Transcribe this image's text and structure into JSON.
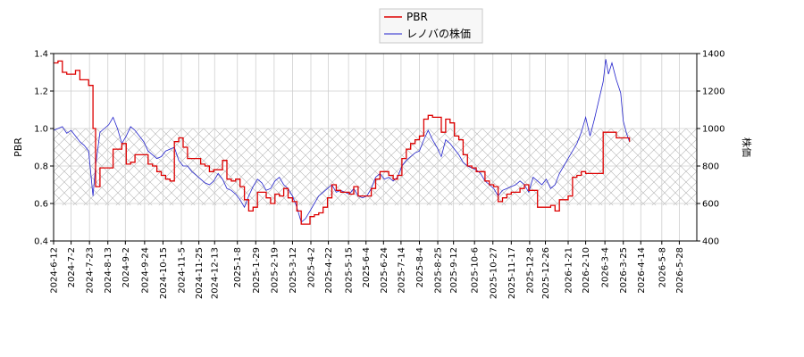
{
  "chart_data": {
    "type": "line",
    "legend": {
      "position": "top-center",
      "entries": [
        {
          "name": "PBR",
          "color": "#dd0000"
        },
        {
          "name": "レノバの株価",
          "color": "#2222cc"
        }
      ]
    },
    "ylabel_left": "PBR",
    "ylabel_right": "株価",
    "ylim_left": [
      0.4,
      1.4
    ],
    "ylim_right": [
      400,
      1400
    ],
    "yticks_left": [
      "0.4",
      "0.6",
      "0.8",
      "1.0",
      "1.2",
      "1.4"
    ],
    "yticks_right": [
      "400",
      "600",
      "800",
      "1000",
      "1200",
      "1400"
    ],
    "grid": true,
    "hatched_band": [
      0.59,
      1.0
    ],
    "x_range": [
      "2024-06-12",
      "2026-06-17"
    ],
    "x_ticks": [
      "2024-6-12",
      "2024-7-2",
      "2024-7-23",
      "2024-8-13",
      "2024-9-2",
      "2024-9-24",
      "2024-10-15",
      "2024-11-5",
      "2024-11-25",
      "2024-12-13",
      "2025-1-8",
      "2025-1-29",
      "2025-2-19",
      "2025-3-12",
      "2025-4-2",
      "2025-4-22",
      "2025-5-15",
      "2025-6-4",
      "2025-6-24",
      "2025-7-14",
      "2025-8-4",
      "2025-8-25",
      "2025-9-12",
      "2025-10-6",
      "2025-10-27",
      "2025-11-17",
      "2025-12-8",
      "2025-12-26",
      "2026-1-21",
      "2026-2-10",
      "2026-3-4",
      "2026-3-25",
      "2026-4-14",
      "2026-5-8",
      "2026-5-28"
    ],
    "series": [
      {
        "name": "PBR",
        "axis": "left",
        "color": "#dd0000",
        "points": [
          [
            "2024-06-12",
            1.35
          ],
          [
            "2024-06-17",
            1.36
          ],
          [
            "2024-06-22",
            1.3
          ],
          [
            "2024-06-27",
            1.29
          ],
          [
            "2024-07-02",
            1.29
          ],
          [
            "2024-07-07",
            1.31
          ],
          [
            "2024-07-12",
            1.26
          ],
          [
            "2024-07-17",
            1.26
          ],
          [
            "2024-07-22",
            1.23
          ],
          [
            "2024-07-27",
            1.0
          ],
          [
            "2024-07-30",
            0.69
          ],
          [
            "2024-08-04",
            0.79
          ],
          [
            "2024-08-09",
            0.79
          ],
          [
            "2024-08-14",
            0.79
          ],
          [
            "2024-08-19",
            0.89
          ],
          [
            "2024-08-24",
            0.89
          ],
          [
            "2024-08-29",
            0.92
          ],
          [
            "2024-09-03",
            0.81
          ],
          [
            "2024-09-08",
            0.82
          ],
          [
            "2024-09-13",
            0.86
          ],
          [
            "2024-09-18",
            0.86
          ],
          [
            "2024-09-23",
            0.86
          ],
          [
            "2024-09-28",
            0.81
          ],
          [
            "2024-10-03",
            0.8
          ],
          [
            "2024-10-08",
            0.77
          ],
          [
            "2024-10-13",
            0.75
          ],
          [
            "2024-10-18",
            0.73
          ],
          [
            "2024-10-23",
            0.72
          ],
          [
            "2024-10-28",
            0.93
          ],
          [
            "2024-11-02",
            0.95
          ],
          [
            "2024-11-07",
            0.9
          ],
          [
            "2024-11-12",
            0.84
          ],
          [
            "2024-11-17",
            0.84
          ],
          [
            "2024-11-22",
            0.84
          ],
          [
            "2024-11-27",
            0.81
          ],
          [
            "2024-12-02",
            0.8
          ],
          [
            "2024-12-07",
            0.77
          ],
          [
            "2024-12-12",
            0.78
          ],
          [
            "2024-12-17",
            0.78
          ],
          [
            "2024-12-22",
            0.83
          ],
          [
            "2024-12-27",
            0.73
          ],
          [
            "2025-01-01",
            0.72
          ],
          [
            "2025-01-06",
            0.73
          ],
          [
            "2025-01-11",
            0.69
          ],
          [
            "2025-01-16",
            0.62
          ],
          [
            "2025-01-21",
            0.56
          ],
          [
            "2025-01-26",
            0.58
          ],
          [
            "2025-01-31",
            0.66
          ],
          [
            "2025-02-05",
            0.66
          ],
          [
            "2025-02-10",
            0.63
          ],
          [
            "2025-02-15",
            0.6
          ],
          [
            "2025-02-20",
            0.65
          ],
          [
            "2025-02-25",
            0.64
          ],
          [
            "2025-03-02",
            0.68
          ],
          [
            "2025-03-07",
            0.63
          ],
          [
            "2025-03-12",
            0.61
          ],
          [
            "2025-03-17",
            0.56
          ],
          [
            "2025-03-22",
            0.49
          ],
          [
            "2025-03-27",
            0.49
          ],
          [
            "2025-04-01",
            0.53
          ],
          [
            "2025-04-06",
            0.54
          ],
          [
            "2025-04-11",
            0.55
          ],
          [
            "2025-04-16",
            0.58
          ],
          [
            "2025-04-21",
            0.63
          ],
          [
            "2025-04-26",
            0.7
          ],
          [
            "2025-05-01",
            0.67
          ],
          [
            "2025-05-06",
            0.66
          ],
          [
            "2025-05-11",
            0.66
          ],
          [
            "2025-05-16",
            0.65
          ],
          [
            "2025-05-21",
            0.69
          ],
          [
            "2025-05-26",
            0.64
          ],
          [
            "2025-05-31",
            0.64
          ],
          [
            "2025-06-05",
            0.64
          ],
          [
            "2025-06-10",
            0.68
          ],
          [
            "2025-06-15",
            0.73
          ],
          [
            "2025-06-20",
            0.77
          ],
          [
            "2025-06-25",
            0.77
          ],
          [
            "2025-06-30",
            0.75
          ],
          [
            "2025-07-05",
            0.73
          ],
          [
            "2025-07-10",
            0.75
          ],
          [
            "2025-07-15",
            0.84
          ],
          [
            "2025-07-20",
            0.89
          ],
          [
            "2025-07-25",
            0.92
          ],
          [
            "2025-07-30",
            0.94
          ],
          [
            "2025-08-04",
            0.96
          ],
          [
            "2025-08-09",
            1.05
          ],
          [
            "2025-08-14",
            1.07
          ],
          [
            "2025-08-19",
            1.06
          ],
          [
            "2025-08-24",
            1.06
          ],
          [
            "2025-08-29",
            0.98
          ],
          [
            "2025-09-03",
            1.05
          ],
          [
            "2025-09-08",
            1.03
          ],
          [
            "2025-09-13",
            0.96
          ],
          [
            "2025-09-18",
            0.94
          ],
          [
            "2025-09-23",
            0.86
          ],
          [
            "2025-09-28",
            0.8
          ],
          [
            "2025-10-03",
            0.79
          ],
          [
            "2025-10-08",
            0.77
          ],
          [
            "2025-10-13",
            0.77
          ],
          [
            "2025-10-18",
            0.72
          ],
          [
            "2025-10-23",
            0.7
          ],
          [
            "2025-10-28",
            0.69
          ],
          [
            "2025-11-02",
            0.61
          ],
          [
            "2025-11-07",
            0.63
          ],
          [
            "2025-11-12",
            0.65
          ],
          [
            "2025-11-17",
            0.66
          ],
          [
            "2025-11-22",
            0.66
          ],
          [
            "2025-11-27",
            0.68
          ],
          [
            "2025-12-02",
            0.7
          ],
          [
            "2025-12-07",
            0.67
          ],
          [
            "2025-12-12",
            0.67
          ],
          [
            "2025-12-17",
            0.58
          ],
          [
            "2025-12-22",
            0.58
          ],
          [
            "2025-12-27",
            0.58
          ],
          [
            "2026-01-01",
            0.59
          ],
          [
            "2026-01-06",
            0.56
          ],
          [
            "2026-01-11",
            0.62
          ],
          [
            "2026-01-16",
            0.62
          ],
          [
            "2026-01-21",
            0.64
          ],
          [
            "2026-01-26",
            0.74
          ],
          [
            "2026-01-31",
            0.75
          ],
          [
            "2026-02-05",
            0.77
          ],
          [
            "2026-02-10",
            0.76
          ],
          [
            "2026-02-15",
            0.76
          ],
          [
            "2026-02-20",
            0.76
          ],
          [
            "2026-02-25",
            0.76
          ],
          [
            "2026-03-02",
            0.98
          ],
          [
            "2026-03-07",
            0.98
          ],
          [
            "2026-03-12",
            0.98
          ],
          [
            "2026-03-17",
            0.95
          ],
          [
            "2026-03-22",
            0.95
          ],
          [
            "2026-03-27",
            0.95
          ],
          [
            "2026-04-01",
            0.93
          ]
        ]
      },
      {
        "name": "レノバの株価",
        "axis": "right",
        "color": "#2222cc",
        "points": [
          [
            "2024-06-12",
            990
          ],
          [
            "2024-06-17",
            1000
          ],
          [
            "2024-06-22",
            1010
          ],
          [
            "2024-06-27",
            975
          ],
          [
            "2024-07-02",
            990
          ],
          [
            "2024-07-07",
            960
          ],
          [
            "2024-07-12",
            930
          ],
          [
            "2024-07-17",
            910
          ],
          [
            "2024-07-22",
            880
          ],
          [
            "2024-07-27",
            640
          ],
          [
            "2024-07-30",
            800
          ],
          [
            "2024-08-04",
            980
          ],
          [
            "2024-08-09",
            1000
          ],
          [
            "2024-08-14",
            1020
          ],
          [
            "2024-08-19",
            1060
          ],
          [
            "2024-08-24",
            1000
          ],
          [
            "2024-08-29",
            920
          ],
          [
            "2024-09-03",
            960
          ],
          [
            "2024-09-08",
            1010
          ],
          [
            "2024-09-13",
            990
          ],
          [
            "2024-09-18",
            960
          ],
          [
            "2024-09-23",
            930
          ],
          [
            "2024-09-28",
            880
          ],
          [
            "2024-10-03",
            860
          ],
          [
            "2024-10-08",
            840
          ],
          [
            "2024-10-13",
            850
          ],
          [
            "2024-10-18",
            880
          ],
          [
            "2024-10-23",
            890
          ],
          [
            "2024-10-28",
            900
          ],
          [
            "2024-11-02",
            830
          ],
          [
            "2024-11-07",
            800
          ],
          [
            "2024-11-12",
            800
          ],
          [
            "2024-11-17",
            770
          ],
          [
            "2024-11-22",
            750
          ],
          [
            "2024-11-27",
            730
          ],
          [
            "2024-12-02",
            710
          ],
          [
            "2024-12-07",
            700
          ],
          [
            "2024-12-12",
            720
          ],
          [
            "2024-12-17",
            760
          ],
          [
            "2024-12-22",
            730
          ],
          [
            "2024-12-27",
            680
          ],
          [
            "2025-01-01",
            670
          ],
          [
            "2025-01-06",
            650
          ],
          [
            "2025-01-11",
            620
          ],
          [
            "2025-01-16",
            580
          ],
          [
            "2025-01-21",
            640
          ],
          [
            "2025-01-26",
            690
          ],
          [
            "2025-01-31",
            730
          ],
          [
            "2025-02-05",
            710
          ],
          [
            "2025-02-10",
            670
          ],
          [
            "2025-02-15",
            680
          ],
          [
            "2025-02-20",
            720
          ],
          [
            "2025-02-25",
            740
          ],
          [
            "2025-03-02",
            700
          ],
          [
            "2025-03-07",
            680
          ],
          [
            "2025-03-12",
            640
          ],
          [
            "2025-03-17",
            580
          ],
          [
            "2025-03-22",
            500
          ],
          [
            "2025-03-27",
            520
          ],
          [
            "2025-04-01",
            560
          ],
          [
            "2025-04-06",
            600
          ],
          [
            "2025-04-11",
            640
          ],
          [
            "2025-04-16",
            660
          ],
          [
            "2025-04-21",
            680
          ],
          [
            "2025-04-26",
            700
          ],
          [
            "2025-05-01",
            660
          ],
          [
            "2025-05-06",
            670
          ],
          [
            "2025-05-11",
            660
          ],
          [
            "2025-05-16",
            650
          ],
          [
            "2025-05-21",
            680
          ],
          [
            "2025-05-26",
            640
          ],
          [
            "2025-05-31",
            630
          ],
          [
            "2025-06-05",
            640
          ],
          [
            "2025-06-10",
            680
          ],
          [
            "2025-06-15",
            740
          ],
          [
            "2025-06-20",
            760
          ],
          [
            "2025-06-25",
            730
          ],
          [
            "2025-06-30",
            740
          ],
          [
            "2025-07-05",
            720
          ],
          [
            "2025-07-10",
            740
          ],
          [
            "2025-07-15",
            800
          ],
          [
            "2025-07-20",
            830
          ],
          [
            "2025-07-25",
            850
          ],
          [
            "2025-07-30",
            870
          ],
          [
            "2025-08-04",
            880
          ],
          [
            "2025-08-09",
            940
          ],
          [
            "2025-08-14",
            990
          ],
          [
            "2025-08-19",
            940
          ],
          [
            "2025-08-24",
            900
          ],
          [
            "2025-08-29",
            850
          ],
          [
            "2025-09-03",
            940
          ],
          [
            "2025-09-08",
            920
          ],
          [
            "2025-09-13",
            890
          ],
          [
            "2025-09-18",
            860
          ],
          [
            "2025-09-23",
            820
          ],
          [
            "2025-09-28",
            800
          ],
          [
            "2025-10-03",
            790
          ],
          [
            "2025-10-08",
            780
          ],
          [
            "2025-10-13",
            760
          ],
          [
            "2025-10-18",
            720
          ],
          [
            "2025-10-23",
            700
          ],
          [
            "2025-10-28",
            680
          ],
          [
            "2025-11-02",
            640
          ],
          [
            "2025-11-07",
            670
          ],
          [
            "2025-11-12",
            680
          ],
          [
            "2025-11-17",
            690
          ],
          [
            "2025-11-22",
            700
          ],
          [
            "2025-11-27",
            720
          ],
          [
            "2025-12-02",
            700
          ],
          [
            "2025-12-07",
            660
          ],
          [
            "2025-12-12",
            740
          ],
          [
            "2025-12-17",
            720
          ],
          [
            "2025-12-22",
            700
          ],
          [
            "2025-12-27",
            730
          ],
          [
            "2026-01-01",
            680
          ],
          [
            "2026-01-06",
            700
          ],
          [
            "2026-01-11",
            760
          ],
          [
            "2026-01-16",
            800
          ],
          [
            "2026-01-21",
            840
          ],
          [
            "2026-01-26",
            880
          ],
          [
            "2026-01-31",
            920
          ],
          [
            "2026-02-05",
            980
          ],
          [
            "2026-02-10",
            1060
          ],
          [
            "2026-02-15",
            960
          ],
          [
            "2026-02-20",
            1050
          ],
          [
            "2026-02-25",
            1150
          ],
          [
            "2026-03-02",
            1250
          ],
          [
            "2026-03-05",
            1370
          ],
          [
            "2026-03-08",
            1290
          ],
          [
            "2026-03-12",
            1350
          ],
          [
            "2026-03-17",
            1260
          ],
          [
            "2026-03-22",
            1190
          ],
          [
            "2026-03-25",
            1040
          ],
          [
            "2026-03-29",
            970
          ],
          [
            "2026-04-01",
            930
          ]
        ]
      }
    ]
  }
}
